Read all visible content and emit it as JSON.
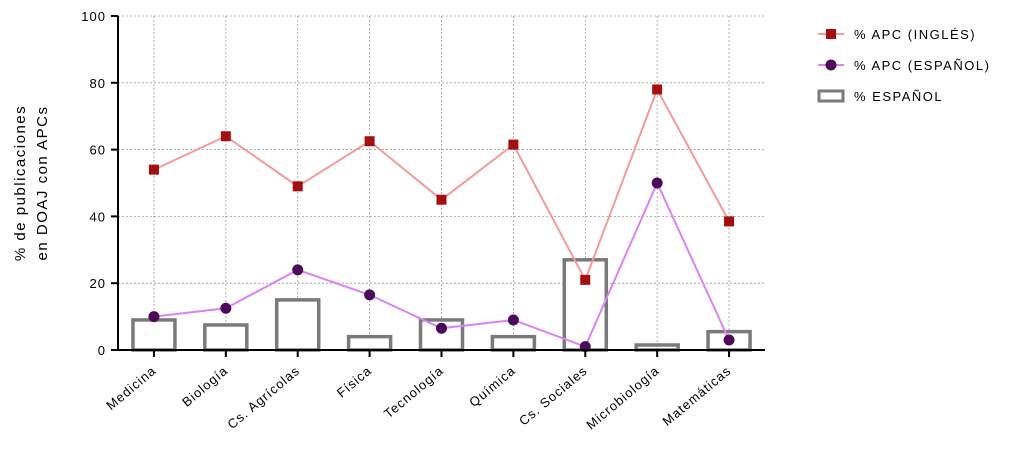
{
  "chart_data": {
    "type": "bar",
    "categories": [
      "Medicina",
      "Biología",
      "Cs. Agrícolas",
      "Física",
      "Tecnología",
      "Química",
      "Cs. Sociales",
      "Microbiología",
      "Matemáticas"
    ],
    "series": [
      {
        "name": "% APC (INGLÉS)",
        "kind": "line",
        "marker": "square",
        "line_color": "#f59a9a",
        "marker_color": "#a50f0f",
        "values": [
          54,
          64,
          49,
          62.5,
          45,
          61.5,
          21,
          78,
          38.5
        ]
      },
      {
        "name": "% APC (ESPAÑOL)",
        "kind": "line",
        "marker": "circle",
        "line_color": "#dc82f5",
        "marker_color": "#4b0a5a",
        "values": [
          10,
          12.5,
          24,
          16.5,
          6.5,
          9,
          1,
          50,
          3
        ]
      },
      {
        "name": "% ESPAÑOL",
        "kind": "bar",
        "edge_color": "#7a7a7a",
        "fill_color": "#ffffff",
        "values": [
          9,
          7.5,
          15,
          4,
          9,
          4,
          27,
          1.5,
          5.5
        ]
      }
    ],
    "ylabel_lines": [
      "% de publicaciones",
      "en DOAJ con APCs"
    ],
    "xlabel": "",
    "ylim": [
      0,
      100
    ],
    "yticks": [
      0,
      20,
      40,
      60,
      80,
      100
    ],
    "grid": true,
    "legend_position": "top-right"
  }
}
